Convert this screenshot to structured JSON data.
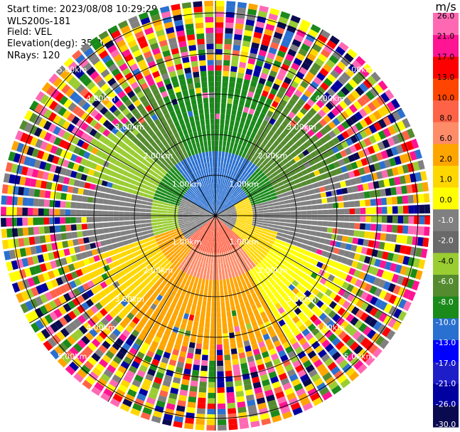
{
  "header": {
    "start_time": "Start time: 2023/08/08 10:29:29",
    "instrument": "WLS200s-181",
    "field": "Field: VEL",
    "elevation": "Elevation(deg): 35.30",
    "nrays": "NRays: 120"
  },
  "chart_data": {
    "type": "ppi",
    "field": "VEL",
    "units": "m/s",
    "nrays": 120,
    "range_rings": [
      {
        "label": "1.00km",
        "value": 1.0
      },
      {
        "label": "2.00km",
        "value": 2.0
      },
      {
        "label": "3.00km",
        "value": 3.0
      },
      {
        "label": "4.00km",
        "value": 4.0
      },
      {
        "label": "5.00km",
        "value": 5.0
      }
    ],
    "max_range_km": 5.3,
    "colorbar": {
      "title": "m/s",
      "colors": [
        "#0a0a50",
        "#0000a0",
        "#1e1ec8",
        "#0000ff",
        "#2a70d0",
        "#1a8a1a",
        "#558b2f",
        "#9acd32",
        "#696969",
        "#808080",
        "#ffff00",
        "#ffd700",
        "#ffa500",
        "#ff8c69",
        "#ff6347",
        "#ff4500",
        "#ff0000",
        "#ff1493",
        "#ff69b4"
      ],
      "tick_labels": [
        "-30.0",
        "-26.0",
        "-21.0",
        "-17.0",
        "-13.0",
        "-10.0",
        "-8.0",
        "-6.0",
        "-4.0",
        "-2.0",
        "-1.0",
        "0.0",
        "1.0",
        "2.0",
        "6.0",
        "8.0",
        "10.0",
        "13.0",
        "17.0",
        "21.0",
        "26.0"
      ]
    },
    "velocity_pattern": {
      "inner_ring_km": 3.6,
      "outer_noise_colors": [
        "#ff1493",
        "#ffff00",
        "#1a8a1a",
        "#0000a0",
        "#ff6347",
        "#9acd32",
        "#ffa500",
        "#2a70d0",
        "#808080",
        "#ff0000",
        "#0a0a50",
        "#ffd700",
        "#ff69b4",
        "#558b2f"
      ]
    }
  }
}
